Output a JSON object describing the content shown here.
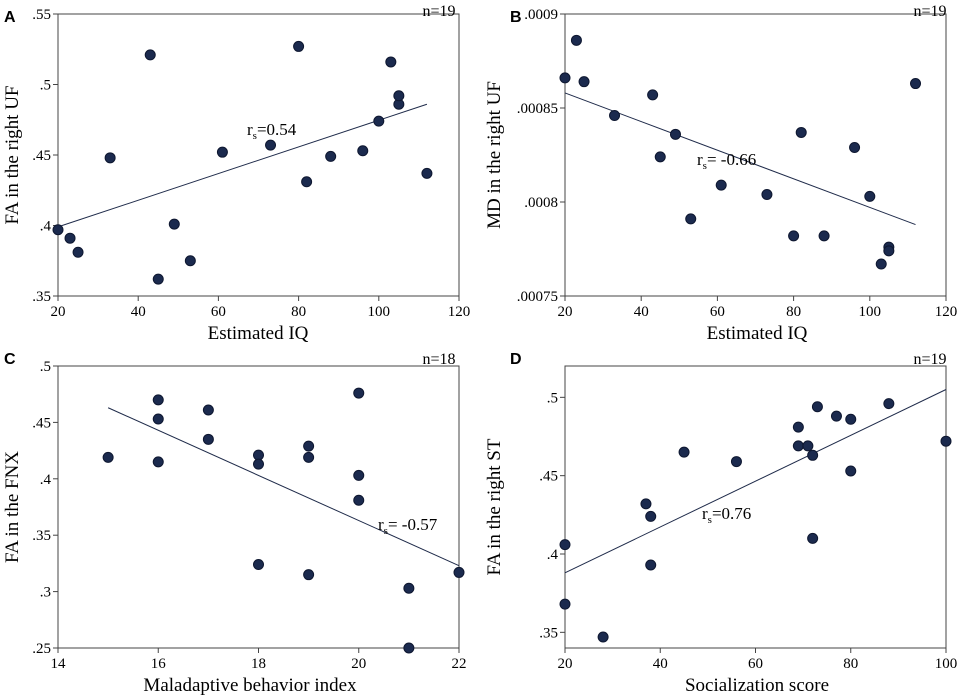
{
  "chart_data": [
    {
      "type": "scatter",
      "panel": "A",
      "n_label": "n=19",
      "xlabel": "Estimated IQ",
      "ylabel": "FA in the right UF",
      "xlim": [
        20,
        120
      ],
      "ylim": [
        0.35,
        0.55
      ],
      "xticks": [
        20,
        40,
        60,
        80,
        100,
        120
      ],
      "xtick_labels": [
        "20",
        "40",
        "60",
        "80",
        "100",
        "120"
      ],
      "yticks": [
        0.35,
        0.4,
        0.45,
        0.5,
        0.55
      ],
      "ytick_labels": [
        ".35",
        ".4",
        ".45",
        ".5",
        ".55"
      ],
      "rs_prefix": "r",
      "rs_sub": "S",
      "rs_value": "=0.54",
      "fit_line": [
        [
          20,
          0.399
        ],
        [
          112,
          0.486
        ]
      ],
      "points": [
        [
          20,
          0.397
        ],
        [
          23,
          0.391
        ],
        [
          25,
          0.381
        ],
        [
          33,
          0.448
        ],
        [
          43,
          0.521
        ],
        [
          45,
          0.362
        ],
        [
          49,
          0.401
        ],
        [
          53,
          0.375
        ],
        [
          61,
          0.452
        ],
        [
          73,
          0.457
        ],
        [
          80,
          0.527
        ],
        [
          82,
          0.431
        ],
        [
          88,
          0.449
        ],
        [
          96,
          0.453
        ],
        [
          100,
          0.474
        ],
        [
          103,
          0.516
        ],
        [
          105,
          0.486
        ],
        [
          105,
          0.492
        ],
        [
          112,
          0.437
        ]
      ]
    },
    {
      "type": "scatter",
      "panel": "B",
      "n_label": "n=19",
      "xlabel": "Estimated IQ",
      "ylabel": "MD in the right UF",
      "xlim": [
        20,
        120
      ],
      "ylim": [
        0.00075,
        0.0009
      ],
      "xticks": [
        20,
        40,
        60,
        80,
        100,
        120
      ],
      "xtick_labels": [
        "20",
        "40",
        "60",
        "80",
        "100",
        "120"
      ],
      "yticks": [
        0.00075,
        0.0008,
        0.00085,
        0.0009
      ],
      "ytick_labels": [
        ".00075",
        ".0008",
        ".00085",
        ".0009"
      ],
      "rs_prefix": "r",
      "rs_sub": "S",
      "rs_value": "= -0.66",
      "fit_line": [
        [
          20,
          0.000858
        ],
        [
          112,
          0.000788
        ]
      ],
      "points": [
        [
          20,
          0.000866
        ],
        [
          23,
          0.000886
        ],
        [
          25,
          0.000864
        ],
        [
          33,
          0.000846
        ],
        [
          43,
          0.000857
        ],
        [
          45,
          0.000824
        ],
        [
          49,
          0.000836
        ],
        [
          53,
          0.000791
        ],
        [
          61,
          0.000809
        ],
        [
          73,
          0.000804
        ],
        [
          80,
          0.000782
        ],
        [
          82,
          0.000837
        ],
        [
          88,
          0.000782
        ],
        [
          96,
          0.000829
        ],
        [
          100,
          0.000803
        ],
        [
          103,
          0.000767
        ],
        [
          105,
          0.000776
        ],
        [
          105,
          0.000774
        ],
        [
          112,
          0.000863
        ]
      ]
    },
    {
      "type": "scatter",
      "panel": "C",
      "n_label": "n=18",
      "xlabel": "Maladaptive behavior index",
      "ylabel": "FA in the FNX",
      "xlim": [
        14,
        22
      ],
      "ylim": [
        0.25,
        0.5
      ],
      "xticks": [
        14,
        16,
        18,
        20,
        22
      ],
      "xtick_labels": [
        "14",
        "16",
        "18",
        "20",
        "22"
      ],
      "yticks": [
        0.25,
        0.3,
        0.35,
        0.4,
        0.45,
        0.5
      ],
      "ytick_labels": [
        ".25",
        ".3",
        ".35",
        ".4",
        ".45",
        ".5"
      ],
      "rs_prefix": "r",
      "rs_sub": "S",
      "rs_value": "= -0.57",
      "fit_line": [
        [
          15,
          0.463
        ],
        [
          22,
          0.323
        ]
      ],
      "points": [
        [
          15,
          0.419
        ],
        [
          16,
          0.47
        ],
        [
          16,
          0.453
        ],
        [
          16,
          0.415
        ],
        [
          17,
          0.461
        ],
        [
          17,
          0.435
        ],
        [
          18,
          0.421
        ],
        [
          18,
          0.413
        ],
        [
          18,
          0.324
        ],
        [
          19,
          0.429
        ],
        [
          19,
          0.419
        ],
        [
          19,
          0.315
        ],
        [
          20,
          0.476
        ],
        [
          20,
          0.403
        ],
        [
          20,
          0.381
        ],
        [
          21,
          0.303
        ],
        [
          21,
          0.25
        ],
        [
          22,
          0.317
        ]
      ]
    },
    {
      "type": "scatter",
      "panel": "D",
      "n_label": "n=19",
      "xlabel": "Socialization score",
      "ylabel": "FA in the right ST",
      "xlim": [
        20,
        100
      ],
      "ylim": [
        0.34,
        0.52
      ],
      "xticks": [
        20,
        40,
        60,
        80,
        100
      ],
      "xtick_labels": [
        "20",
        "40",
        "60",
        "80",
        "100"
      ],
      "yticks": [
        0.35,
        0.4,
        0.45,
        0.5
      ],
      "ytick_labels": [
        ".35",
        ".4",
        ".45",
        ".5"
      ],
      "rs_prefix": "r",
      "rs_sub": "S",
      "rs_value": "=0.76",
      "fit_line": [
        [
          20,
          0.388
        ],
        [
          100,
          0.505
        ]
      ],
      "points": [
        [
          20,
          0.406
        ],
        [
          20,
          0.368
        ],
        [
          28,
          0.347
        ],
        [
          37,
          0.432
        ],
        [
          38,
          0.424
        ],
        [
          38,
          0.393
        ],
        [
          45,
          0.465
        ],
        [
          56,
          0.459
        ],
        [
          69,
          0.481
        ],
        [
          69,
          0.469
        ],
        [
          71,
          0.469
        ],
        [
          72,
          0.463
        ],
        [
          72,
          0.41
        ],
        [
          73,
          0.494
        ],
        [
          77,
          0.488
        ],
        [
          80,
          0.486
        ],
        [
          80,
          0.453
        ],
        [
          88,
          0.496
        ],
        [
          100,
          0.472
        ]
      ]
    }
  ],
  "colors": {
    "marker_fill": "#1b2a4e",
    "marker_stroke": "#0e1730",
    "fit_line": "#1f2b4a",
    "frame": "#444444"
  }
}
